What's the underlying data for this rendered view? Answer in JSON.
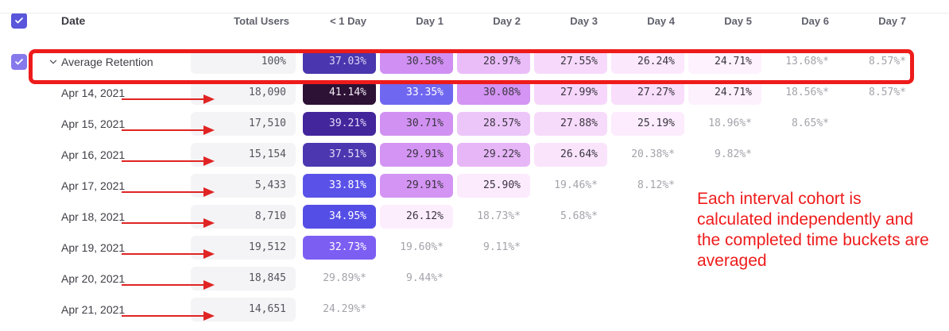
{
  "header": {
    "columns": [
      "Date",
      "Total Users",
      "< 1 Day",
      "Day 1",
      "Day 2",
      "Day 3",
      "Day 4",
      "Day 5",
      "Day 6",
      "Day 7"
    ],
    "select_all_checked": true
  },
  "average_row": {
    "label": "Average Retention",
    "checked": true,
    "total": "100%",
    "cells": [
      {
        "v": "37.03%",
        "bg": "#4a36ae",
        "fg": "#ded7f7"
      },
      {
        "v": "30.58%",
        "bg": "#d08ff2",
        "fg": "#3a3540"
      },
      {
        "v": "28.97%",
        "bg": "#eabdf8",
        "fg": "#3a3540"
      },
      {
        "v": "27.55%",
        "bg": "#f7dafb",
        "fg": "#3a3540"
      },
      {
        "v": "26.24%",
        "bg": "#fbe8fc",
        "fg": "#3a3540"
      },
      {
        "v": "24.71%",
        "bg": "#fdf2fd",
        "fg": "#3a3540"
      },
      {
        "v": "13.68%*",
        "bg": "",
        "fg": "#a3a3ab"
      },
      {
        "v": "8.57%*",
        "bg": "",
        "fg": "#a3a3ab"
      }
    ]
  },
  "rows": [
    {
      "date": "Apr 14, 2021",
      "total": "18,090",
      "cells": [
        {
          "v": "41.14%",
          "bg": "#2d1235",
          "fg": "#f2ecf6"
        },
        {
          "v": "33.35%",
          "bg": "#7067f1",
          "fg": "#ffffff"
        },
        {
          "v": "30.08%",
          "bg": "#d494f3",
          "fg": "#3a3540"
        },
        {
          "v": "27.99%",
          "bg": "#f6d7fb",
          "fg": "#3a3540"
        },
        {
          "v": "27.27%",
          "bg": "#f9defc",
          "fg": "#3a3540"
        },
        {
          "v": "24.71%",
          "bg": "#fdf1fd",
          "fg": "#3a3540"
        },
        {
          "v": "18.56%*",
          "bg": "",
          "fg": "#a3a3ab"
        },
        {
          "v": "8.57%*",
          "bg": "",
          "fg": "#a3a3ab"
        }
      ]
    },
    {
      "date": "Apr 15, 2021",
      "total": "17,510",
      "cells": [
        {
          "v": "39.21%",
          "bg": "#43259c",
          "fg": "#e3dcf8"
        },
        {
          "v": "30.71%",
          "bg": "#d191f2",
          "fg": "#3a3540"
        },
        {
          "v": "28.57%",
          "bg": "#edc6f9",
          "fg": "#3a3540"
        },
        {
          "v": "27.88%",
          "bg": "#f7dbfb",
          "fg": "#3a3540"
        },
        {
          "v": "25.19%",
          "bg": "#fcecfd",
          "fg": "#3a3540"
        },
        {
          "v": "18.96%*",
          "bg": "",
          "fg": "#a3a3ab"
        },
        {
          "v": "8.65%*",
          "bg": "",
          "fg": "#a3a3ab"
        }
      ]
    },
    {
      "date": "Apr 16, 2021",
      "total": "15,154",
      "cells": [
        {
          "v": "37.51%",
          "bg": "#4c37b0",
          "fg": "#e3dcf8"
        },
        {
          "v": "29.91%",
          "bg": "#d494f3",
          "fg": "#3a3540"
        },
        {
          "v": "29.22%",
          "bg": "#e7b6f7",
          "fg": "#3a3540"
        },
        {
          "v": "26.64%",
          "bg": "#fae4fc",
          "fg": "#3a3540"
        },
        {
          "v": "20.38%*",
          "bg": "",
          "fg": "#a3a3ab"
        },
        {
          "v": "9.82%*",
          "bg": "",
          "fg": "#a3a3ab"
        }
      ]
    },
    {
      "date": "Apr 17, 2021",
      "total": "5,433",
      "cells": [
        {
          "v": "33.81%",
          "bg": "#5a52e8",
          "fg": "#ffffff"
        },
        {
          "v": "29.91%",
          "bg": "#d494f3",
          "fg": "#3a3540"
        },
        {
          "v": "25.90%",
          "bg": "#fceafd",
          "fg": "#3a3540"
        },
        {
          "v": "19.46%*",
          "bg": "",
          "fg": "#a3a3ab"
        },
        {
          "v": "8.12%*",
          "bg": "",
          "fg": "#a3a3ab"
        }
      ]
    },
    {
      "date": "Apr 18, 2021",
      "total": "8,710",
      "cells": [
        {
          "v": "34.95%",
          "bg": "#554ee6",
          "fg": "#ffffff"
        },
        {
          "v": "26.12%",
          "bg": "#fdeefd",
          "fg": "#3a3540"
        },
        {
          "v": "18.73%*",
          "bg": "",
          "fg": "#a3a3ab"
        },
        {
          "v": "5.68%*",
          "bg": "",
          "fg": "#a3a3ab"
        }
      ]
    },
    {
      "date": "Apr 19, 2021",
      "total": "19,512",
      "cells": [
        {
          "v": "32.73%",
          "bg": "#7d5ef3",
          "fg": "#ffffff"
        },
        {
          "v": "19.60%*",
          "bg": "",
          "fg": "#a3a3ab"
        },
        {
          "v": "9.11%*",
          "bg": "",
          "fg": "#a3a3ab"
        }
      ]
    },
    {
      "date": "Apr 20, 2021",
      "total": "18,845",
      "cells": [
        {
          "v": "29.89%*",
          "bg": "",
          "fg": "#a3a3ab"
        },
        {
          "v": "9.44%*",
          "bg": "",
          "fg": "#a3a3ab"
        }
      ]
    },
    {
      "date": "Apr 21, 2021",
      "total": "14,651",
      "cells": [
        {
          "v": "24.29%*",
          "bg": "",
          "fg": "#a3a3ab"
        }
      ]
    }
  ],
  "annotation": {
    "note_lines": [
      "Each interval cohort is",
      "calculated independently and",
      "the completed time buckets are",
      "averaged"
    ],
    "red_color": "#ee1b1b",
    "highlighted_row": "Average Retention"
  },
  "colors": {
    "header_checkbox": "#5956db",
    "row_checkbox": "#8679ec",
    "total_cell_bg": "#f4f4f6"
  }
}
